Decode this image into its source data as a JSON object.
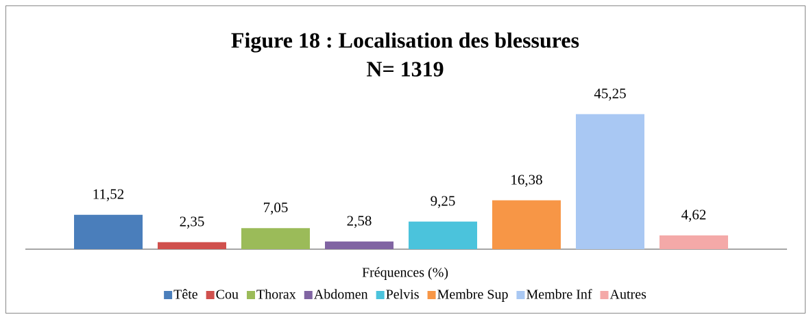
{
  "chart_data": {
    "type": "bar",
    "title": "Figure 18 : Localisation des blessures",
    "subtitle": "N= 1319",
    "x_label": "Fréquences (%)",
    "categories": [
      "Tête",
      "Cou",
      "Thorax",
      "Abdomen",
      "Pelvis",
      "Membre Sup",
      "Membre Inf",
      "Autres"
    ],
    "values": [
      11.52,
      2.35,
      7.05,
      2.58,
      9.25,
      16.38,
      45.25,
      4.62
    ],
    "value_labels": [
      "11,52",
      "2,35",
      "7,05",
      "2,58",
      "9,25",
      "16,38",
      "45,25",
      "4,62"
    ],
    "colors": [
      "#4a7ebb",
      "#d0504d",
      "#9bbb59",
      "#8064a2",
      "#4bc3dc",
      "#f79646",
      "#a9c8f3",
      "#f4a9a8"
    ],
    "ylim": [
      0,
      50
    ],
    "legend": "bottom"
  }
}
